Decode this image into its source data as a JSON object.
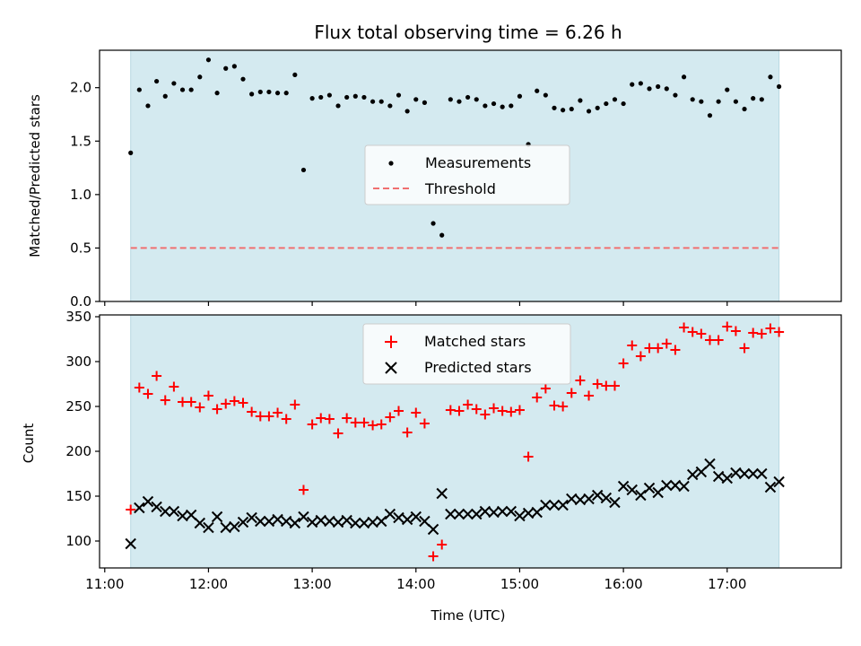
{
  "colors": {
    "observing_band": "#d4eaf0",
    "measurements": "#000000",
    "threshold": "#f07070",
    "matched": "#ff0000",
    "predicted": "#000000"
  },
  "chart_data": [
    {
      "type": "scatter",
      "title": "Flux total observing time = 6.26 h",
      "ylabel": "Matched/Predicted stars",
      "xlim": [
        "10:57",
        "18:06"
      ],
      "ylim": [
        0,
        2.35
      ],
      "x_tick_labels": [
        "11:00",
        "12:00",
        "13:00",
        "14:00",
        "15:00",
        "16:00",
        "17:00"
      ],
      "y_ticks": [
        0.0,
        0.5,
        1.0,
        1.5,
        2.0
      ],
      "y_tick_labels": [
        "0.0",
        "0.5",
        "1.0",
        "1.5",
        "2.0"
      ],
      "observing_window": [
        "11:15",
        "17:30"
      ],
      "threshold": 0.5,
      "legend": [
        "Measurements",
        "Threshold"
      ],
      "legend_position": "center",
      "series": [
        {
          "name": "Measurements",
          "x": [
            "11:15",
            "11:20",
            "11:25",
            "11:30",
            "11:35",
            "11:40",
            "11:45",
            "11:50",
            "11:55",
            "12:00",
            "12:05",
            "12:10",
            "12:15",
            "12:20",
            "12:25",
            "12:30",
            "12:35",
            "12:40",
            "12:45",
            "12:50",
            "12:55",
            "13:00",
            "13:05",
            "13:10",
            "13:15",
            "13:20",
            "13:25",
            "13:30",
            "13:35",
            "13:40",
            "13:45",
            "13:50",
            "13:55",
            "14:00",
            "14:05",
            "14:10",
            "14:15",
            "14:20",
            "14:25",
            "14:30",
            "14:35",
            "14:40",
            "14:45",
            "14:50",
            "14:55",
            "15:00",
            "15:05",
            "15:10",
            "15:15",
            "15:20",
            "15:25",
            "15:30",
            "15:35",
            "15:40",
            "15:45",
            "15:50",
            "15:55",
            "16:00",
            "16:05",
            "16:10",
            "16:15",
            "16:20",
            "16:25",
            "16:30",
            "16:35",
            "16:40",
            "16:45",
            "16:50",
            "16:55",
            "17:00",
            "17:05",
            "17:10",
            "17:15",
            "17:20",
            "17:25",
            "17:30"
          ],
          "y": [
            1.39,
            1.98,
            1.83,
            2.06,
            1.92,
            2.04,
            1.98,
            1.98,
            2.1,
            2.26,
            1.95,
            2.18,
            2.2,
            2.08,
            1.94,
            1.96,
            1.96,
            1.95,
            1.95,
            2.12,
            1.23,
            1.9,
            1.91,
            1.93,
            1.83,
            1.91,
            1.92,
            1.91,
            1.87,
            1.87,
            1.83,
            1.93,
            1.78,
            1.89,
            1.86,
            0.73,
            0.62,
            1.89,
            1.87,
            1.91,
            1.89,
            1.83,
            1.85,
            1.82,
            1.83,
            1.92,
            1.47,
            1.97,
            1.93,
            1.81,
            1.79,
            1.8,
            1.88,
            1.78,
            1.81,
            1.85,
            1.89,
            1.85,
            2.03,
            2.04,
            1.99,
            2.01,
            1.99,
            1.93,
            2.1,
            1.89,
            1.87,
            1.74,
            1.87,
            1.98,
            1.87,
            1.8,
            1.9,
            1.89,
            2.1,
            2.01
          ]
        },
        {
          "name": "Threshold",
          "x": [
            "11:15",
            "17:30"
          ],
          "y": [
            0.5,
            0.5
          ]
        }
      ]
    },
    {
      "type": "scatter",
      "xlabel": "Time (UTC)",
      "ylabel": "Count",
      "xlim": [
        "10:57",
        "18:06"
      ],
      "ylim": [
        70,
        352
      ],
      "x_tick_labels": [
        "11:00",
        "12:00",
        "13:00",
        "14:00",
        "15:00",
        "16:00",
        "17:00"
      ],
      "y_ticks": [
        100,
        150,
        200,
        250,
        300,
        350
      ],
      "y_tick_labels": [
        "100",
        "150",
        "200",
        "250",
        "300",
        "350"
      ],
      "observing_window": [
        "11:15",
        "17:30"
      ],
      "legend": [
        "Matched stars",
        "Predicted stars"
      ],
      "legend_position": "upper center",
      "series": [
        {
          "name": "Matched stars",
          "x": [
            "11:15",
            "11:20",
            "11:25",
            "11:30",
            "11:35",
            "11:40",
            "11:45",
            "11:50",
            "11:55",
            "12:00",
            "12:05",
            "12:10",
            "12:15",
            "12:20",
            "12:25",
            "12:30",
            "12:35",
            "12:40",
            "12:45",
            "12:50",
            "12:55",
            "13:00",
            "13:05",
            "13:10",
            "13:15",
            "13:20",
            "13:25",
            "13:30",
            "13:35",
            "13:40",
            "13:45",
            "13:50",
            "13:55",
            "14:00",
            "14:05",
            "14:10",
            "14:15",
            "14:20",
            "14:25",
            "14:30",
            "14:35",
            "14:40",
            "14:45",
            "14:50",
            "14:55",
            "15:00",
            "15:05",
            "15:10",
            "15:15",
            "15:20",
            "15:25",
            "15:30",
            "15:35",
            "15:40",
            "15:45",
            "15:50",
            "15:55",
            "16:00",
            "16:05",
            "16:10",
            "16:15",
            "16:20",
            "16:25",
            "16:30",
            "16:35",
            "16:40",
            "16:45",
            "16:50",
            "16:55",
            "17:00",
            "17:05",
            "17:10",
            "17:15",
            "17:20",
            "17:25",
            "17:30"
          ],
          "y": [
            135,
            271,
            264,
            284,
            257,
            272,
            255,
            255,
            249,
            262,
            247,
            253,
            256,
            254,
            244,
            239,
            239,
            243,
            236,
            252,
            157,
            230,
            237,
            236,
            220,
            237,
            232,
            232,
            229,
            230,
            238,
            245,
            221,
            243,
            231,
            83,
            96,
            246,
            245,
            252,
            247,
            241,
            248,
            245,
            244,
            246,
            194,
            260,
            270,
            251,
            250,
            265,
            279,
            262,
            275,
            273,
            273,
            298,
            318,
            306,
            315,
            315,
            320,
            313,
            338,
            333,
            331,
            324,
            324,
            339,
            334,
            315,
            332,
            331,
            337,
            333
          ]
        },
        {
          "name": "Predicted stars",
          "x": [
            "11:15",
            "11:20",
            "11:25",
            "11:30",
            "11:35",
            "11:40",
            "11:45",
            "11:50",
            "11:55",
            "12:00",
            "12:05",
            "12:10",
            "12:15",
            "12:20",
            "12:25",
            "12:30",
            "12:35",
            "12:40",
            "12:45",
            "12:50",
            "12:55",
            "13:00",
            "13:05",
            "13:10",
            "13:15",
            "13:20",
            "13:25",
            "13:30",
            "13:35",
            "13:40",
            "13:45",
            "13:50",
            "13:55",
            "14:00",
            "14:05",
            "14:10",
            "14:15",
            "14:20",
            "14:25",
            "14:30",
            "14:35",
            "14:40",
            "14:45",
            "14:50",
            "14:55",
            "15:00",
            "15:05",
            "15:10",
            "15:15",
            "15:20",
            "15:25",
            "15:30",
            "15:35",
            "15:40",
            "15:45",
            "15:50",
            "15:55",
            "16:00",
            "16:05",
            "16:10",
            "16:15",
            "16:20",
            "16:25",
            "16:30",
            "16:35",
            "16:40",
            "16:45",
            "16:50",
            "16:55",
            "17:00",
            "17:05",
            "17:10",
            "17:15",
            "17:20",
            "17:25",
            "17:30"
          ],
          "y": [
            97,
            137,
            144,
            138,
            133,
            133,
            128,
            129,
            120,
            115,
            127,
            115,
            116,
            121,
            126,
            122,
            122,
            124,
            122,
            120,
            127,
            121,
            123,
            122,
            121,
            123,
            120,
            120,
            121,
            122,
            130,
            126,
            124,
            127,
            122,
            113,
            153,
            130,
            130,
            130,
            130,
            133,
            132,
            133,
            133,
            128,
            131,
            132,
            140,
            140,
            140,
            147,
            146,
            147,
            151,
            148,
            143,
            161,
            157,
            151,
            159,
            154,
            162,
            162,
            161,
            174,
            177,
            186,
            172,
            170,
            176,
            175,
            175,
            175,
            160,
            166
          ]
        }
      ]
    }
  ]
}
